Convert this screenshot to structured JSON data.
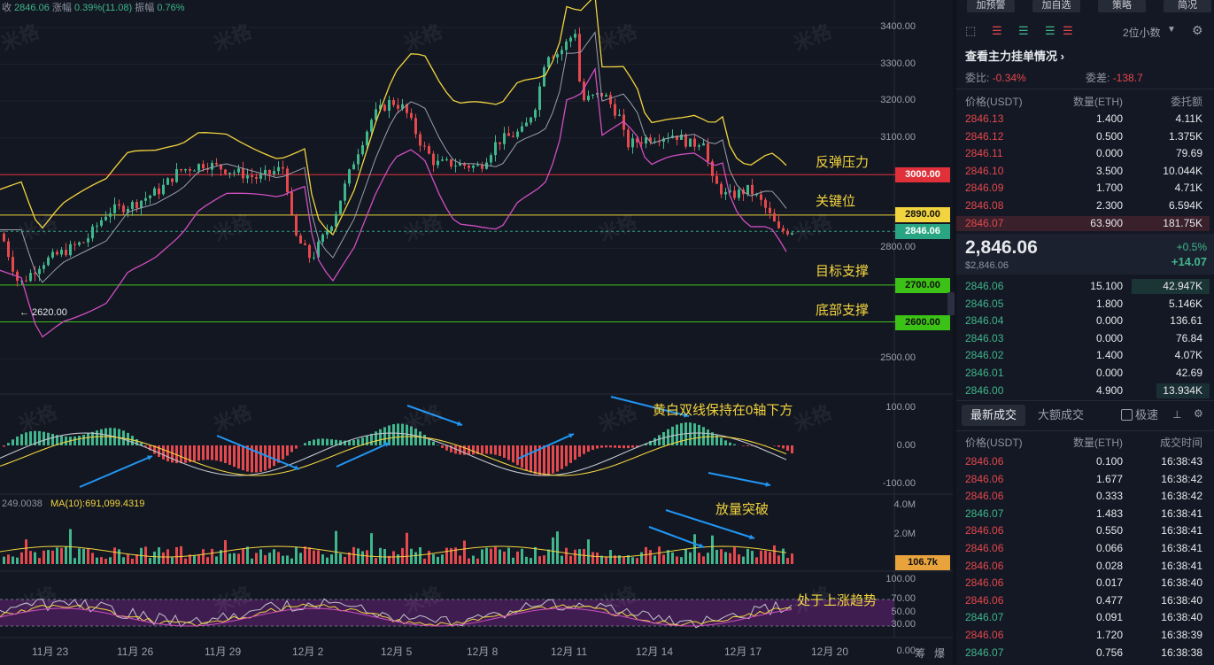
{
  "header": {
    "close_label": "收",
    "close_value": "2846.06",
    "change_label": "涨幅",
    "change_value": "0.39%(11.08)",
    "amp_label": "振幅",
    "amp_value": "0.76%"
  },
  "watermark": "米格",
  "price_axis": [
    "3400.00",
    "3300.00",
    "3200.00",
    "3100.00",
    "2800.00",
    "2500.00"
  ],
  "price_tags": {
    "p3000": "3000.00",
    "p2890": "2890.00",
    "current": "2846.06",
    "p2700": "2700.00",
    "p2600": "2600.00"
  },
  "low_marker": "← 2620.00",
  "annotations": {
    "resistance": "反弹压力",
    "key": "关键位",
    "target": "目标支撑",
    "bottom": "底部支撑",
    "macd": "黄白双线保持在0轴下方",
    "volume": "放量突破",
    "rsi": "处于上涨趋势"
  },
  "macd_axis": [
    "100.00",
    "0.00",
    "-100.00"
  ],
  "volume": {
    "info_left": "249.0038",
    "ma_label": "MA(10):691,099.4319",
    "axis": [
      "4.0M",
      "2.0M"
    ],
    "tag": "106.7k"
  },
  "rsi_axis": [
    "100.00",
    "70.00",
    "50.00",
    "30.00",
    "0.00"
  ],
  "x_axis": [
    "11月 23",
    "11月 26",
    "11月 29",
    "12月 2",
    "12月 5",
    "12月 8",
    "12月 11",
    "12月 14",
    "12月 17",
    "12月 20"
  ],
  "corner": [
    "筹",
    "爆"
  ],
  "colors": {
    "up": "#3fb68b",
    "down": "#e5484d",
    "yellow": "#f2d43e",
    "bg": "#131722"
  },
  "right_panel": {
    "top_buttons": [
      "加预警",
      "加自选",
      "策略",
      "简况"
    ],
    "precision": "2位小数",
    "main_title": "查看主力挂单情况",
    "ratio_label": "委比:",
    "ratio_value": "-0.34%",
    "diff_label": "委差:",
    "diff_value": "-138.7",
    "ob_headers": [
      "价格(USDT)",
      "数量(ETH)",
      "委托额"
    ],
    "asks": [
      [
        "2846.13",
        "1.400",
        "4.11K"
      ],
      [
        "2846.12",
        "0.500",
        "1.375K"
      ],
      [
        "2846.11",
        "0.000",
        "79.69"
      ],
      [
        "2846.10",
        "3.500",
        "10.044K"
      ],
      [
        "2846.09",
        "1.700",
        "4.71K"
      ],
      [
        "2846.08",
        "2.300",
        "6.594K"
      ],
      [
        "2846.07",
        "63.900",
        "181.75K"
      ]
    ],
    "last_price": "2,846.06",
    "last_price_sub": "$2,846.06",
    "change_pct": "+0.5%",
    "change_abs": "+14.07",
    "bids": [
      [
        "2846.06",
        "15.100",
        "42.947K"
      ],
      [
        "2846.05",
        "1.800",
        "5.146K"
      ],
      [
        "2846.04",
        "0.000",
        "136.61"
      ],
      [
        "2846.03",
        "0.000",
        "76.84"
      ],
      [
        "2846.02",
        "1.400",
        "4.07K"
      ],
      [
        "2846.01",
        "0.000",
        "42.69"
      ],
      [
        "2846.00",
        "4.900",
        "13.934K"
      ]
    ],
    "tab_latest": "最新成交",
    "tab_big": "大额成交",
    "speed_label": "极速",
    "trade_headers": [
      "价格(USDT)",
      "数量(ETH)",
      "成交时间"
    ],
    "trades": [
      [
        "2846.06",
        "0.100",
        "16:38:43",
        "down"
      ],
      [
        "2846.06",
        "1.677",
        "16:38:42",
        "down"
      ],
      [
        "2846.06",
        "0.333",
        "16:38:42",
        "down"
      ],
      [
        "2846.07",
        "1.483",
        "16:38:41",
        "up"
      ],
      [
        "2846.06",
        "0.550",
        "16:38:41",
        "down"
      ],
      [
        "2846.06",
        "0.066",
        "16:38:41",
        "down"
      ],
      [
        "2846.06",
        "0.028",
        "16:38:41",
        "down"
      ],
      [
        "2846.06",
        "0.017",
        "16:38:40",
        "down"
      ],
      [
        "2846.06",
        "0.477",
        "16:38:40",
        "down"
      ],
      [
        "2846.07",
        "0.091",
        "16:38:40",
        "up"
      ],
      [
        "2846.06",
        "1.720",
        "16:38:39",
        "down"
      ],
      [
        "2846.07",
        "0.756",
        "16:38:38",
        "up"
      ]
    ]
  }
}
